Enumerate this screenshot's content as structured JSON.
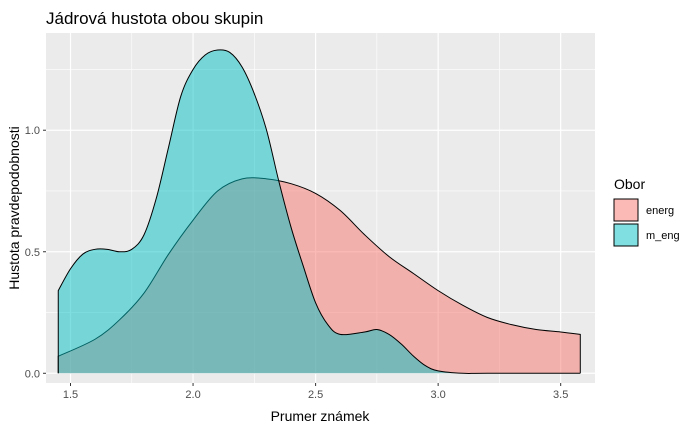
{
  "chart_data": {
    "type": "area",
    "title": "Jádrová hustota obou skupin",
    "xlabel": "Prumer známek",
    "ylabel": "Hustota pravdepodobnosti",
    "xlim": [
      1.4,
      3.64
    ],
    "ylim": [
      -0.04,
      1.4
    ],
    "x_ticks": [
      1.5,
      2.0,
      2.5,
      3.0,
      3.5
    ],
    "x_tick_labels": [
      "1.5",
      "2.0",
      "2.5",
      "3.0",
      "3.5"
    ],
    "y_ticks": [
      0.0,
      0.5,
      1.0
    ],
    "y_tick_labels": [
      "0.0",
      "0.5",
      "1.0"
    ],
    "grid": true,
    "background": "#ebebeb",
    "legend": {
      "title": "Obor",
      "placement": "right"
    },
    "series": [
      {
        "name": "energ",
        "color": "#F8766D",
        "x": [
          1.45,
          1.6,
          1.7,
          1.8,
          1.9,
          2.0,
          2.1,
          2.2,
          2.3,
          2.4,
          2.5,
          2.6,
          2.7,
          2.8,
          2.9,
          3.0,
          3.1,
          3.2,
          3.3,
          3.4,
          3.5,
          3.58
        ],
        "values": [
          0.07,
          0.14,
          0.22,
          0.33,
          0.49,
          0.63,
          0.75,
          0.8,
          0.8,
          0.78,
          0.74,
          0.67,
          0.57,
          0.48,
          0.41,
          0.34,
          0.28,
          0.23,
          0.2,
          0.18,
          0.17,
          0.16
        ]
      },
      {
        "name": "m_eng",
        "color": "#00BFC4",
        "x": [
          1.45,
          1.5,
          1.55,
          1.6,
          1.65,
          1.7,
          1.75,
          1.8,
          1.85,
          1.9,
          1.95,
          2.0,
          2.05,
          2.1,
          2.15,
          2.2,
          2.25,
          2.3,
          2.35,
          2.4,
          2.45,
          2.5,
          2.55,
          2.6,
          2.7,
          2.75,
          2.8,
          2.85,
          2.9,
          2.95,
          3.0,
          3.1,
          3.2,
          3.58
        ],
        "values": [
          0.34,
          0.43,
          0.49,
          0.51,
          0.51,
          0.5,
          0.51,
          0.57,
          0.72,
          0.93,
          1.14,
          1.25,
          1.31,
          1.33,
          1.32,
          1.26,
          1.15,
          1.0,
          0.79,
          0.6,
          0.44,
          0.29,
          0.2,
          0.16,
          0.17,
          0.18,
          0.16,
          0.12,
          0.07,
          0.03,
          0.01,
          0.0,
          0.0,
          0.0
        ]
      }
    ]
  }
}
